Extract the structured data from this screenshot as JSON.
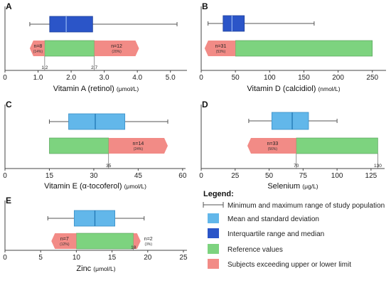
{
  "colors": {
    "sd": "#62b7ea",
    "iqr": "#2b55c8",
    "ref": "#7dd37f",
    "exceed": "#f28b86",
    "axis": "#444444",
    "median": "#1d3f99",
    "mean": "#2177b4"
  },
  "chart_data": [
    {
      "type": "boxplot",
      "panel": "A",
      "xlabel": "Vitamin A (retinol)",
      "unit": "(μmol/L)",
      "xlim": [
        0,
        5.5
      ],
      "ticks": [
        0,
        1.0,
        2.0,
        3.0,
        4.0,
        5.0
      ],
      "tick_labels": [
        "0",
        "1.0",
        "2.0",
        "3.0",
        "4.0",
        "5.0"
      ],
      "box_type": "iqr",
      "range": [
        0.75,
        5.2
      ],
      "box": [
        1.35,
        2.65
      ],
      "center": 1.85,
      "reference": [
        1.2,
        2.7
      ],
      "ref_marks": [
        "1.2",
        "2.7"
      ],
      "exceed_low": {
        "from": 0.75,
        "n": "n=8",
        "pct": "(14%)"
      },
      "exceed_high": {
        "to": 4.05,
        "n": "n=12",
        "pct": "(20%)"
      }
    },
    {
      "type": "boxplot",
      "panel": "B",
      "xlabel": "Vitamin D (calcidiol)",
      "unit": "(nmol/L)",
      "xlim": [
        0,
        270
      ],
      "ticks": [
        0,
        50,
        100,
        150,
        200,
        250
      ],
      "tick_labels": [
        "0",
        "50",
        "100",
        "150",
        "200",
        "250"
      ],
      "box_type": "iqr",
      "range": [
        10,
        165
      ],
      "box": [
        32,
        63
      ],
      "center": 45,
      "reference": [
        50,
        250
      ],
      "ref_marks": [],
      "exceed_low": {
        "from": 5,
        "n": "n=31",
        "pct": "(53%)"
      }
    },
    {
      "type": "boxplot",
      "panel": "C",
      "xlabel": "Vitamin E (α-tocoferol)",
      "unit": "(μmol/L)",
      "xlim": [
        0,
        61
      ],
      "ticks": [
        0,
        15,
        30,
        45,
        60
      ],
      "tick_labels": [
        "0",
        "15",
        "30",
        "45",
        "60"
      ],
      "box_type": "sd",
      "range": [
        15,
        55
      ],
      "box": [
        21.5,
        40.5
      ],
      "center": 30.5,
      "reference": [
        15,
        35
      ],
      "ref_marks": [
        "35"
      ],
      "exceed_high": {
        "to": 55,
        "n": "n=14",
        "pct": "(24%)"
      }
    },
    {
      "type": "boxplot",
      "panel": "D",
      "xlabel": "Selenium",
      "unit": "(μg/L)",
      "xlim": [
        0,
        135
      ],
      "ticks": [
        0,
        25,
        50,
        75,
        100,
        125
      ],
      "tick_labels": [
        "0",
        "25",
        "50",
        "75",
        "100",
        "125"
      ],
      "box_type": "sd",
      "range": [
        35,
        100
      ],
      "box": [
        52,
        79
      ],
      "center": 67,
      "reference": [
        70,
        130
      ],
      "ref_marks": [
        "70",
        "130"
      ],
      "exceed_low": {
        "from": 34,
        "n": "n=33",
        "pct": "(56%)"
      }
    },
    {
      "type": "boxplot",
      "panel": "E",
      "xlabel": "Zinc",
      "unit": "(μmol/L)",
      "xlim": [
        0,
        25.5
      ],
      "ticks": [
        0,
        5,
        10,
        15,
        20,
        25
      ],
      "tick_labels": [
        "0",
        "5",
        "10",
        "15",
        "20",
        "25"
      ],
      "box_type": "sd",
      "range": [
        6,
        19.5
      ],
      "box": [
        9.7,
        15.4
      ],
      "center": 12.6,
      "reference": [
        10,
        18
      ],
      "ref_marks": [
        "18"
      ],
      "exceed_low": {
        "from": 6.5,
        "n": "n=7",
        "pct": "(12%)"
      },
      "exceed_high": {
        "to": 19,
        "n": "n=2",
        "pct": "(3%)",
        "outside": true
      }
    }
  ],
  "legend": {
    "title": "Legend:",
    "items": [
      {
        "kind": "range",
        "label": "Minimum and maximum range of study population"
      },
      {
        "kind": "sd",
        "label": "Mean and standard deviation"
      },
      {
        "kind": "iqr",
        "label": "Interquartile range and median"
      },
      {
        "kind": "ref",
        "label": "Reference values"
      },
      {
        "kind": "exceed",
        "label": "Subjects exceeding upper or lower limit"
      }
    ]
  }
}
